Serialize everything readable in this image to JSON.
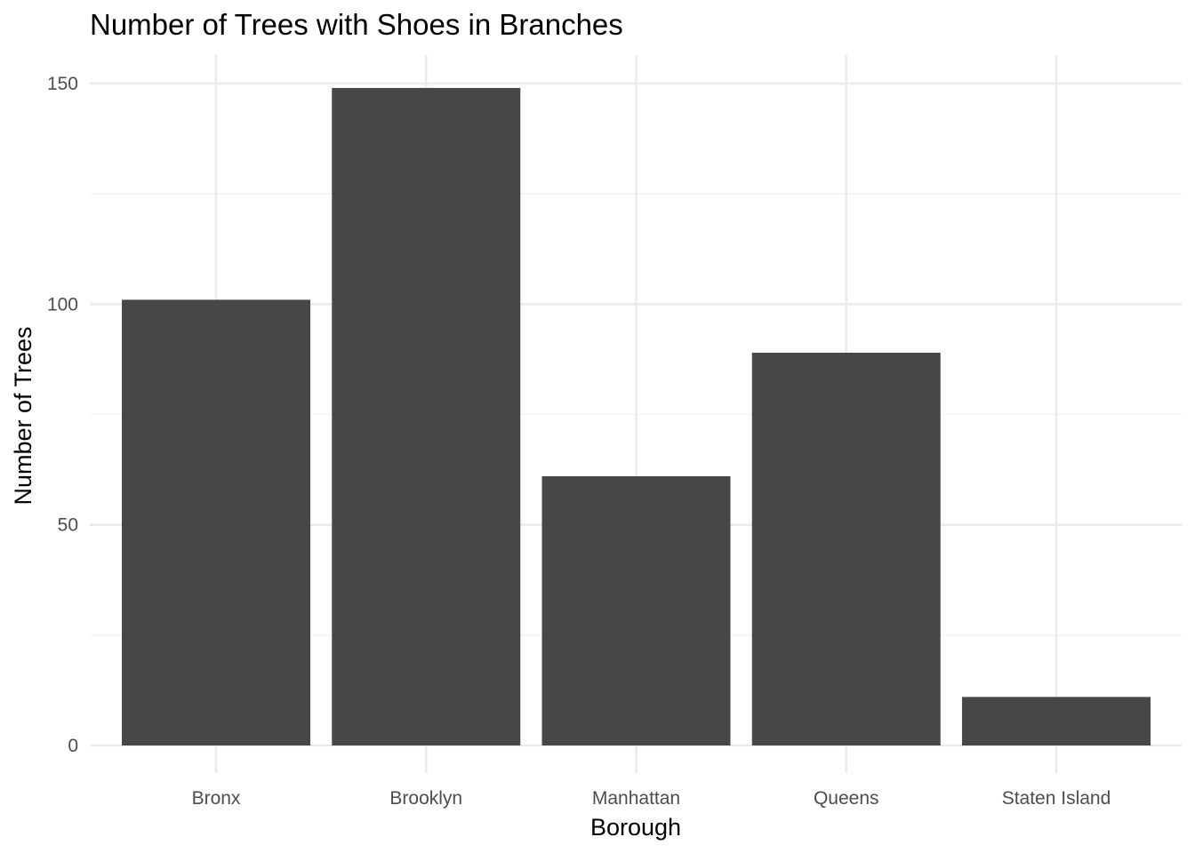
{
  "chart_data": {
    "type": "bar",
    "title": "Number of Trees with Shoes in Branches",
    "xlabel": "Borough",
    "ylabel": "Number of Trees",
    "categories": [
      "Bronx",
      "Brooklyn",
      "Manhattan",
      "Queens",
      "Staten Island"
    ],
    "values": [
      101,
      149,
      61,
      89,
      11
    ],
    "ylim": [
      0,
      150
    ],
    "yticks": [
      "0",
      "50",
      "100",
      "150"
    ],
    "grid": true,
    "legend": "none",
    "colors": {
      "bar": "#474747",
      "grid_major": "#ebebeb",
      "grid_minor": "#f2f2f2",
      "background": "#ffffff"
    }
  }
}
